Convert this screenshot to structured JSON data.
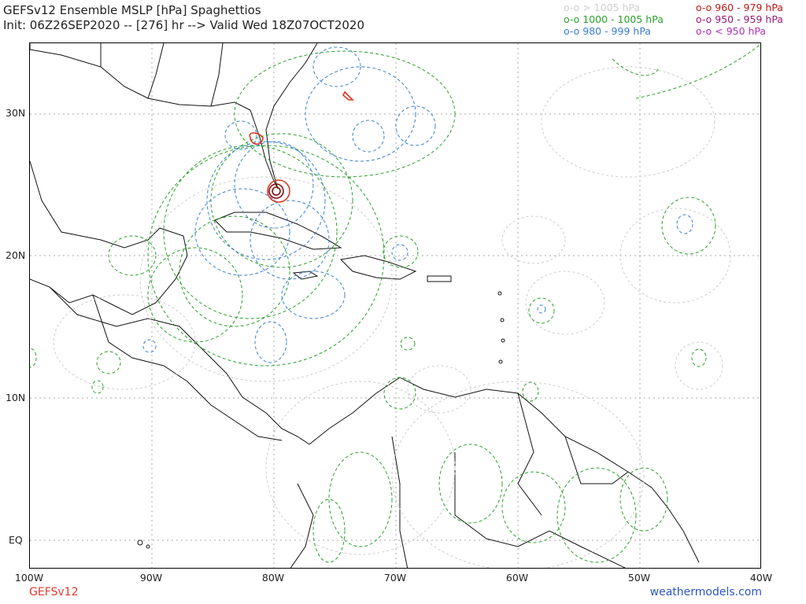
{
  "header": {
    "title_line1": "GEFSv12 Ensemble MSLP [hPa] Spaghettios",
    "title_line2": "Init: 06Z26SEP2020 -- [276] hr --> Valid Wed 18Z07OCT2020"
  },
  "legend": {
    "items": [
      {
        "label": "o-o > 1005 hPa",
        "color": "#cfcfcf"
      },
      {
        "label": "o-o 1000 - 1005 hPa",
        "color": "#2aa02a"
      },
      {
        "label": "o-o 980 - 999 hPa",
        "color": "#3a7fd0"
      },
      {
        "label": "o-o 960 - 979 hPa",
        "color": "#c01818"
      },
      {
        "label": "o-o 950 - 959 hPa",
        "color": "#9a1a7a"
      },
      {
        "label": "o-o < 950 hPa",
        "color": "#b030c0"
      }
    ]
  },
  "axes": {
    "lat_labels": [
      "30N",
      "20N",
      "10N",
      "EQ"
    ],
    "lon_labels": [
      "100W",
      "90W",
      "80W",
      "70W",
      "60W",
      "50W",
      "40W"
    ]
  },
  "footer": {
    "model": "GEFSv12",
    "site": "weathermodels.com"
  },
  "colors": {
    "gray": "#cccccc",
    "green": "#2aa02a",
    "blue": "#3a7fd0",
    "red": "#d83a20",
    "darkred": "#8a1010",
    "grid": "#aaaaaa"
  }
}
